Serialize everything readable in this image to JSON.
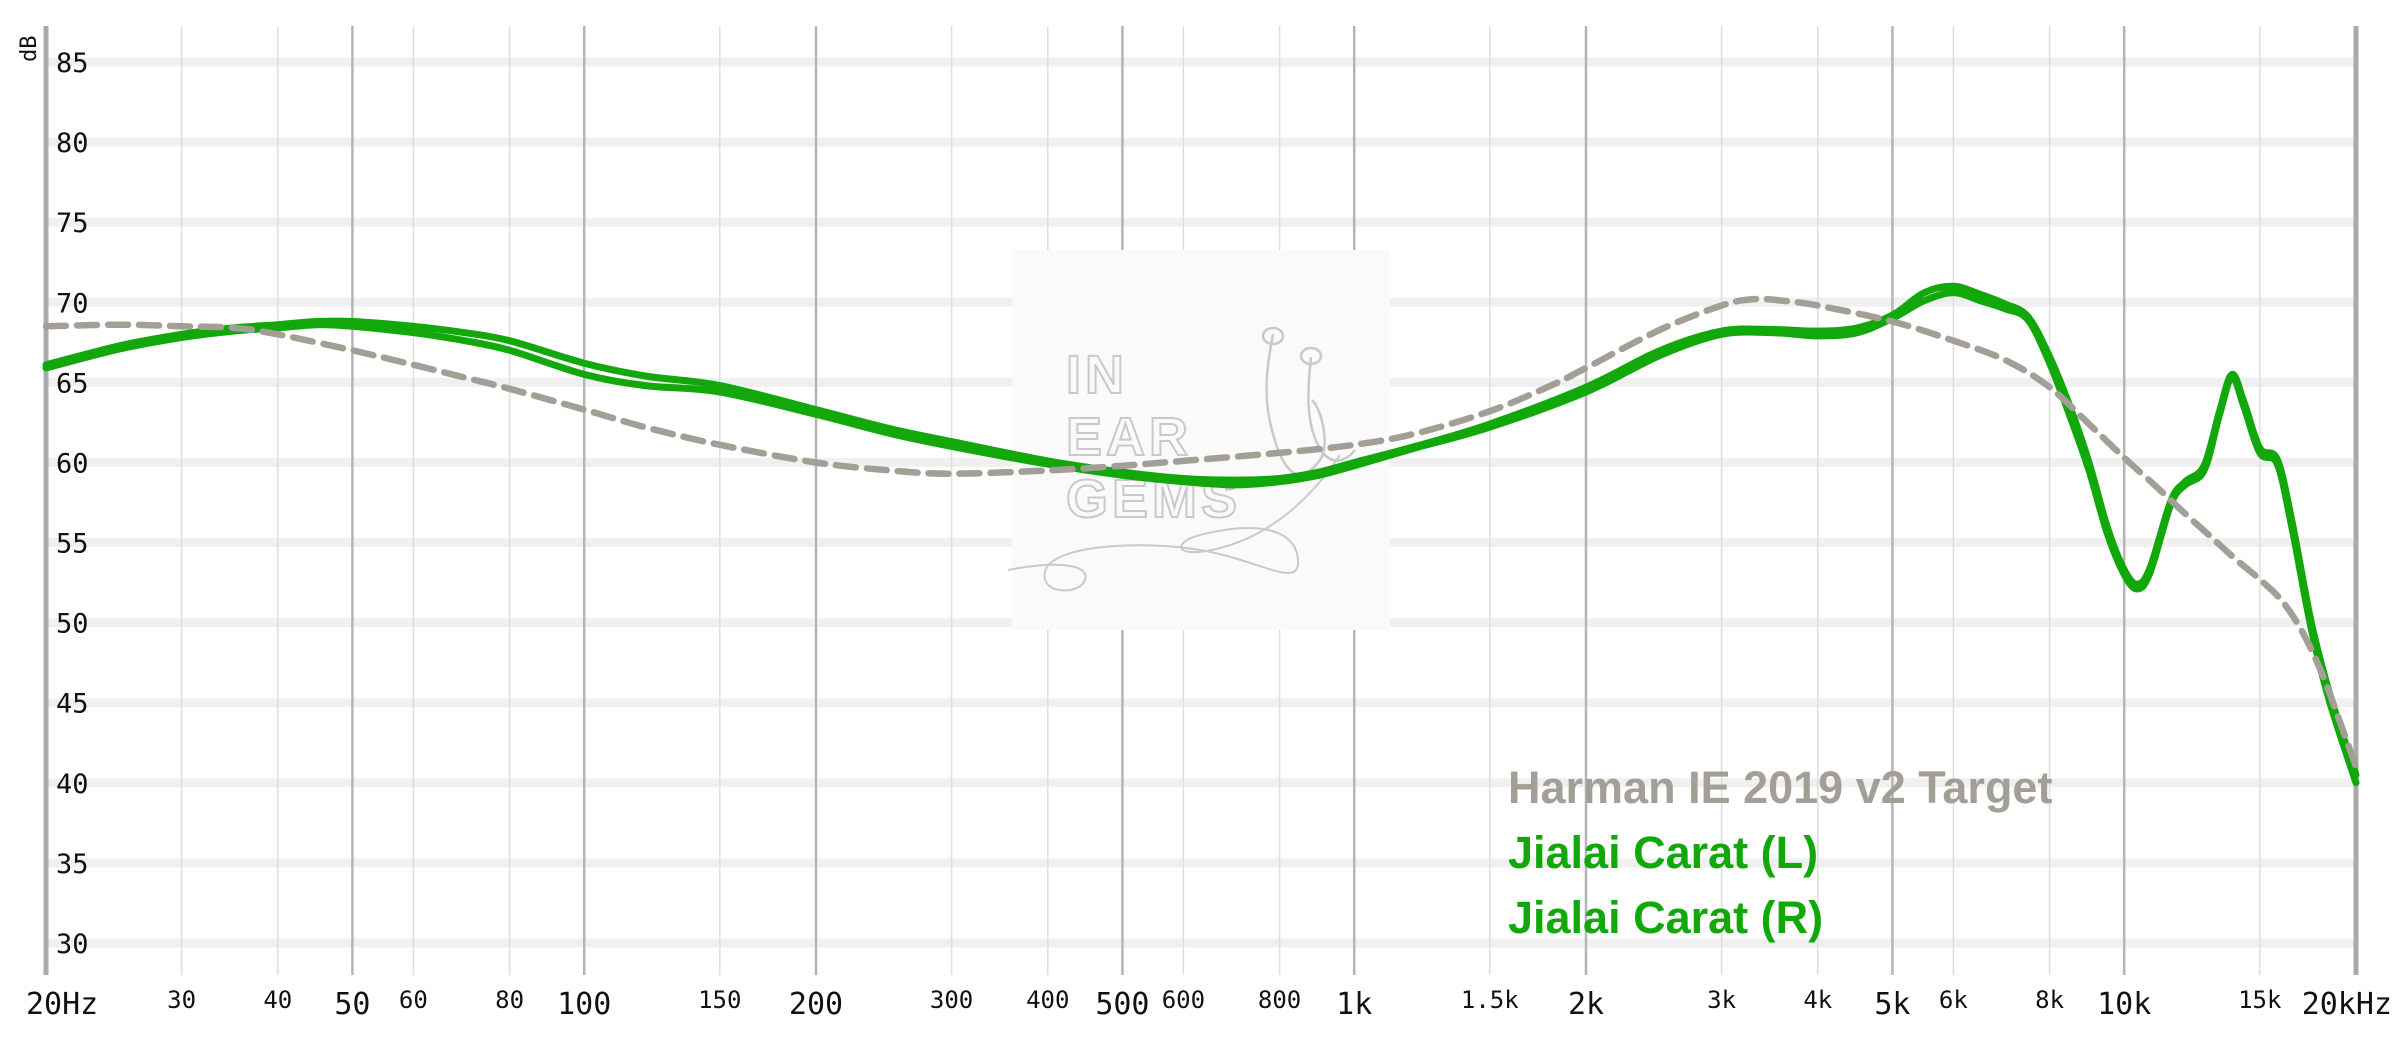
{
  "chart_data": {
    "type": "line",
    "title": "",
    "xlabel": "",
    "ylabel": "dB",
    "x_scale": "log",
    "xlim": [
      20,
      20000
    ],
    "ylim": [
      28,
      87
    ],
    "grid": true,
    "legend_position": "bottom-right",
    "y_ticks": [
      30,
      35,
      40,
      45,
      50,
      55,
      60,
      65,
      70,
      75,
      80,
      85
    ],
    "y_tick_labels": [
      "30",
      "35",
      "40",
      "45",
      "50",
      "55",
      "60",
      "65",
      "70",
      "75",
      "80",
      "85"
    ],
    "x_ticks": [
      {
        "value": 20,
        "label": "20Hz",
        "major": true
      },
      {
        "value": 30,
        "label": "30",
        "major": false
      },
      {
        "value": 40,
        "label": "40",
        "major": false
      },
      {
        "value": 50,
        "label": "50",
        "major": true
      },
      {
        "value": 60,
        "label": "60",
        "major": false
      },
      {
        "value": 80,
        "label": "80",
        "major": false
      },
      {
        "value": 100,
        "label": "100",
        "major": true
      },
      {
        "value": 150,
        "label": "150",
        "major": false
      },
      {
        "value": 200,
        "label": "200",
        "major": true
      },
      {
        "value": 300,
        "label": "300",
        "major": false
      },
      {
        "value": 400,
        "label": "400",
        "major": false
      },
      {
        "value": 500,
        "label": "500",
        "major": true
      },
      {
        "value": 600,
        "label": "600",
        "major": false
      },
      {
        "value": 800,
        "label": "800",
        "major": false
      },
      {
        "value": 1000,
        "label": "1k",
        "major": true
      },
      {
        "value": 1500,
        "label": "1.5k",
        "major": false
      },
      {
        "value": 2000,
        "label": "2k",
        "major": true
      },
      {
        "value": 3000,
        "label": "3k",
        "major": false
      },
      {
        "value": 4000,
        "label": "4k",
        "major": false
      },
      {
        "value": 5000,
        "label": "5k",
        "major": true
      },
      {
        "value": 6000,
        "label": "6k",
        "major": false
      },
      {
        "value": 8000,
        "label": "8k",
        "major": false
      },
      {
        "value": 10000,
        "label": "10k",
        "major": true
      },
      {
        "value": 15000,
        "label": "15k",
        "major": false
      },
      {
        "value": 20000,
        "label": "20kHz",
        "major": true
      }
    ],
    "series": [
      {
        "name": "Harman IE 2019 v2 Target",
        "color": "#a39f96",
        "style": "dashed",
        "points": [
          [
            20,
            68.5
          ],
          [
            25,
            68.6
          ],
          [
            30,
            68.5
          ],
          [
            35,
            68.4
          ],
          [
            40,
            68.0
          ],
          [
            50,
            67.0
          ],
          [
            60,
            66.1
          ],
          [
            70,
            65.3
          ],
          [
            80,
            64.6
          ],
          [
            100,
            63.3
          ],
          [
            120,
            62.2
          ],
          [
            150,
            61.1
          ],
          [
            200,
            60.0
          ],
          [
            250,
            59.5
          ],
          [
            300,
            59.3
          ],
          [
            400,
            59.5
          ],
          [
            500,
            59.8
          ],
          [
            600,
            60.1
          ],
          [
            800,
            60.6
          ],
          [
            1000,
            61.1
          ],
          [
            1200,
            61.8
          ],
          [
            1500,
            63.2
          ],
          [
            1800,
            64.8
          ],
          [
            2000,
            65.9
          ],
          [
            2500,
            68.3
          ],
          [
            3000,
            69.8
          ],
          [
            3300,
            70.2
          ],
          [
            3600,
            70.1
          ],
          [
            4000,
            69.8
          ],
          [
            5000,
            68.8
          ],
          [
            6000,
            67.6
          ],
          [
            7000,
            66.4
          ],
          [
            8000,
            64.7
          ],
          [
            9000,
            62.4
          ],
          [
            10000,
            60.3
          ],
          [
            11000,
            58.5
          ],
          [
            12000,
            56.8
          ],
          [
            13000,
            55.3
          ],
          [
            14000,
            53.9
          ],
          [
            15000,
            52.7
          ],
          [
            16000,
            51.4
          ],
          [
            17000,
            49.5
          ],
          [
            18000,
            47.0
          ],
          [
            19000,
            44.0
          ],
          [
            20000,
            41.0
          ]
        ]
      },
      {
        "name": "Jialai Carat (L)",
        "color": "#12a80b",
        "style": "solid",
        "points": [
          [
            20,
            66.1
          ],
          [
            25,
            67.3
          ],
          [
            30,
            68.0
          ],
          [
            35,
            68.4
          ],
          [
            40,
            68.6
          ],
          [
            45,
            68.8
          ],
          [
            50,
            68.8
          ],
          [
            60,
            68.5
          ],
          [
            70,
            68.1
          ],
          [
            80,
            67.6
          ],
          [
            100,
            66.2
          ],
          [
            120,
            65.4
          ],
          [
            150,
            64.8
          ],
          [
            200,
            63.3
          ],
          [
            250,
            62.1
          ],
          [
            300,
            61.3
          ],
          [
            400,
            60.1
          ],
          [
            500,
            59.4
          ],
          [
            600,
            59.0
          ],
          [
            700,
            58.9
          ],
          [
            800,
            59.0
          ],
          [
            900,
            59.4
          ],
          [
            1000,
            60.0
          ],
          [
            1200,
            61.0
          ],
          [
            1500,
            62.4
          ],
          [
            2000,
            64.7
          ],
          [
            2500,
            67.0
          ],
          [
            3000,
            68.2
          ],
          [
            3500,
            68.3
          ],
          [
            4000,
            68.2
          ],
          [
            4500,
            68.4
          ],
          [
            5000,
            69.2
          ],
          [
            5500,
            70.6
          ],
          [
            6000,
            71.0
          ],
          [
            6500,
            70.5
          ],
          [
            7000,
            69.9
          ],
          [
            7500,
            69.1
          ],
          [
            8000,
            66.6
          ],
          [
            8500,
            63.5
          ],
          [
            9000,
            60.0
          ],
          [
            9500,
            56.0
          ],
          [
            10000,
            53.3
          ],
          [
            10400,
            52.4
          ],
          [
            10800,
            53.4
          ],
          [
            11500,
            57.6
          ],
          [
            12000,
            58.8
          ],
          [
            12700,
            59.8
          ],
          [
            13300,
            63.2
          ],
          [
            13800,
            65.5
          ],
          [
            14300,
            63.8
          ],
          [
            15000,
            60.9
          ],
          [
            15800,
            60.2
          ],
          [
            16500,
            56.4
          ],
          [
            17500,
            50.0
          ],
          [
            18500,
            45.5
          ],
          [
            20000,
            40.5
          ]
        ]
      },
      {
        "name": "Jialai Carat (R)",
        "color": "#12a80b",
        "style": "solid",
        "points": [
          [
            20,
            65.9
          ],
          [
            25,
            67.1
          ],
          [
            30,
            67.8
          ],
          [
            35,
            68.2
          ],
          [
            40,
            68.4
          ],
          [
            45,
            68.6
          ],
          [
            50,
            68.5
          ],
          [
            60,
            68.1
          ],
          [
            70,
            67.6
          ],
          [
            80,
            67.0
          ],
          [
            100,
            65.5
          ],
          [
            120,
            64.8
          ],
          [
            150,
            64.4
          ],
          [
            200,
            63.0
          ],
          [
            250,
            61.8
          ],
          [
            300,
            61.0
          ],
          [
            400,
            59.9
          ],
          [
            500,
            59.2
          ],
          [
            600,
            58.8
          ],
          [
            700,
            58.6
          ],
          [
            800,
            58.8
          ],
          [
            900,
            59.2
          ],
          [
            1000,
            59.8
          ],
          [
            1200,
            60.9
          ],
          [
            1500,
            62.2
          ],
          [
            2000,
            64.4
          ],
          [
            2500,
            66.7
          ],
          [
            3000,
            68.0
          ],
          [
            3500,
            68.1
          ],
          [
            4000,
            67.9
          ],
          [
            4500,
            68.1
          ],
          [
            5000,
            69.0
          ],
          [
            5500,
            70.1
          ],
          [
            6000,
            70.6
          ],
          [
            6500,
            70.1
          ],
          [
            7000,
            69.6
          ],
          [
            7500,
            68.9
          ],
          [
            8000,
            66.2
          ],
          [
            8500,
            62.9
          ],
          [
            9000,
            59.5
          ],
          [
            9500,
            55.6
          ],
          [
            10000,
            53.0
          ],
          [
            10400,
            52.1
          ],
          [
            10800,
            53.1
          ],
          [
            11500,
            57.4
          ],
          [
            12000,
            58.6
          ],
          [
            12700,
            59.5
          ],
          [
            13300,
            63.0
          ],
          [
            13800,
            65.3
          ],
          [
            14300,
            63.5
          ],
          [
            15000,
            60.6
          ],
          [
            15800,
            59.9
          ],
          [
            16500,
            56.0
          ],
          [
            17500,
            49.6
          ],
          [
            18500,
            45.0
          ],
          [
            20000,
            40.0
          ]
        ]
      }
    ],
    "legend": [
      {
        "label": "Harman IE 2019 v2 Target",
        "color": "#a39f96"
      },
      {
        "label": "Jialai Carat (L)",
        "color": "#12a80b"
      },
      {
        "label": "Jialai Carat (R)",
        "color": "#12a80b"
      }
    ]
  },
  "watermark": {
    "lines": [
      "IN",
      "EAR",
      "GEMS"
    ],
    "color": "#c9c9c9",
    "icon": "earphones-icon"
  }
}
